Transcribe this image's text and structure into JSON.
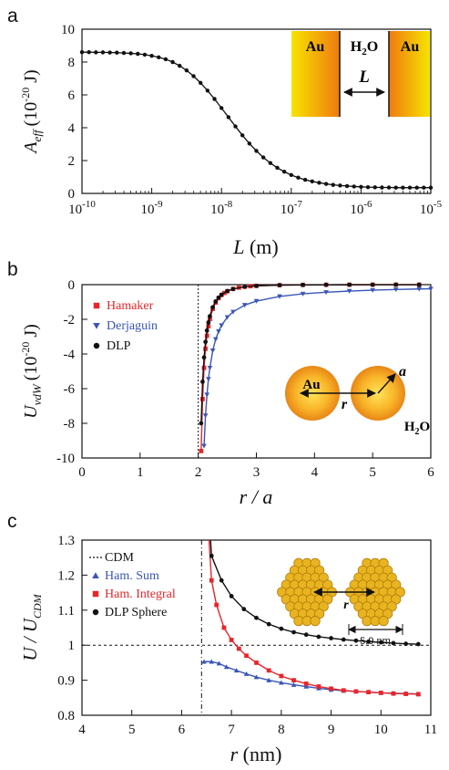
{
  "panels": {
    "a": {
      "label": "a",
      "ylabel_sym": "A",
      "ylabel_sub": "eff",
      "ylabel_unit": "(10",
      "ylabel_exp": "-20",
      "ylabel_end": " J)",
      "xlabel_sym": "L",
      "xlabel_unit": " (m)"
    },
    "b": {
      "label": "b",
      "ylabel_sym": "U",
      "ylabel_sub": "vdW",
      "ylabel_unit": "(10",
      "ylabel_exp": "-20",
      "ylabel_end": " J)",
      "xlabel": "r / a"
    },
    "c": {
      "label": "c",
      "ylabel_main": "U / U",
      "ylabel_sub": "CDM",
      "xlabel_sym": "r",
      "xlabel_unit": " (nm)"
    }
  },
  "insets": {
    "a": {
      "left": "Au",
      "middle_main": "H",
      "middle_sub": "2",
      "middle_end": "O",
      "right": "Au",
      "gap": "L"
    },
    "b": {
      "particle": "Au",
      "distance": "r",
      "radius": "a",
      "medium_main": "H",
      "medium_sub": "2",
      "medium_end": "O"
    },
    "c": {
      "distance": "r",
      "size": "5.9 nm"
    }
  },
  "chart_data": [
    {
      "type": "line",
      "panel": "a",
      "xscale": "log",
      "xlim": [
        1e-10,
        1e-05
      ],
      "ylim": [
        0,
        10
      ],
      "xticks": [
        1e-10,
        1e-09,
        1e-08,
        1e-07,
        1e-06,
        1e-05
      ],
      "xtick_mantissa": [
        "10",
        "10",
        "10",
        "10",
        "10",
        "10"
      ],
      "xtick_exponents": [
        "-10",
        "-9",
        "-8",
        "-7",
        "-6",
        "-5"
      ],
      "yticks": [
        0,
        2,
        4,
        6,
        8,
        10
      ],
      "ytick_labels": [
        "0",
        "2",
        "4",
        "6",
        "8",
        "10"
      ],
      "series": [
        {
          "color": "#111111",
          "marker": "circle",
          "logx": [
            -10,
            -9.9,
            -9.8,
            -9.7,
            -9.6,
            -9.5,
            -9.4,
            -9.3,
            -9.2,
            -9.1,
            -9,
            -8.9,
            -8.8,
            -8.7,
            -8.6,
            -8.5,
            -8.4,
            -8.3,
            -8.2,
            -8.1,
            -8,
            -7.9,
            -7.8,
            -7.7,
            -7.6,
            -7.5,
            -7.4,
            -7.3,
            -7.2,
            -7.1,
            -7,
            -6.9,
            -6.8,
            -6.7,
            -6.6,
            -6.5,
            -6.4,
            -6.3,
            -6.2,
            -6.1,
            -6,
            -5.9,
            -5.8,
            -5.7,
            -5.6,
            -5.5,
            -5.4,
            -5.3,
            -5.2,
            -5.1,
            -5
          ],
          "y": [
            8.6,
            8.6,
            8.59,
            8.59,
            8.58,
            8.57,
            8.55,
            8.53,
            8.5,
            8.45,
            8.38,
            8.29,
            8.17,
            8.0,
            7.77,
            7.49,
            7.14,
            6.73,
            6.26,
            5.75,
            5.2,
            4.64,
            4.08,
            3.54,
            3.04,
            2.59,
            2.19,
            1.85,
            1.56,
            1.32,
            1.12,
            0.96,
            0.83,
            0.73,
            0.65,
            0.58,
            0.52,
            0.48,
            0.45,
            0.42,
            0.4,
            0.38,
            0.37,
            0.36,
            0.36,
            0.35,
            0.35,
            0.35,
            0.35,
            0.35,
            0.35
          ]
        }
      ]
    },
    {
      "type": "line",
      "panel": "b",
      "xlim": [
        0,
        6
      ],
      "ylim": [
        -10,
        0
      ],
      "xticks": [
        0,
        1,
        2,
        3,
        4,
        5,
        6
      ],
      "xtick_labels": [
        "0",
        "1",
        "2",
        "3",
        "4",
        "5",
        "6"
      ],
      "yticks": [
        0,
        -2,
        -4,
        -6,
        -8,
        -10
      ],
      "ytick_labels": [
        "0",
        "-2",
        "-4",
        "-6",
        "-8",
        "-10"
      ],
      "vline": 2,
      "legend_position": "top-left",
      "series": [
        {
          "name": "Hamaker",
          "color": "#e8262a",
          "marker": "square",
          "x": [
            2.05,
            2.075,
            2.1,
            2.125,
            2.15,
            2.175,
            2.2,
            2.25,
            2.3,
            2.35,
            2.4,
            2.45,
            2.5,
            2.6,
            2.7,
            2.8,
            2.9,
            3.0,
            3.4,
            3.8,
            4.2,
            4.6,
            5.0,
            5.4,
            5.8
          ],
          "y": [
            -9.6,
            -6.6,
            -4.8,
            -3.7,
            -2.95,
            -2.4,
            -1.98,
            -1.4,
            -1.03,
            -0.78,
            -0.6,
            -0.48,
            -0.38,
            -0.25,
            -0.17,
            -0.12,
            -0.09,
            -0.07,
            -0.03,
            -0.015,
            -0.009,
            -0.006,
            -0.004,
            -0.003,
            -0.002
          ]
        },
        {
          "name": "Derjaguin",
          "color": "#3a56b8",
          "marker": "triangle-down",
          "x": [
            2.1,
            2.125,
            2.15,
            2.175,
            2.2,
            2.25,
            2.3,
            2.35,
            2.4,
            2.5,
            2.6,
            2.8,
            3.0,
            3.4,
            3.8,
            4.2,
            4.6,
            5.0,
            5.4,
            5.8,
            6.0
          ],
          "y": [
            -9.3,
            -7.55,
            -6.35,
            -5.45,
            -4.8,
            -3.8,
            -3.15,
            -2.7,
            -2.35,
            -1.88,
            -1.57,
            -1.18,
            -0.95,
            -0.68,
            -0.53,
            -0.44,
            -0.37,
            -0.32,
            -0.28,
            -0.25,
            -0.24
          ]
        },
        {
          "name": "DLP",
          "color": "#111111",
          "marker": "circle",
          "x": [
            2.05,
            2.075,
            2.1,
            2.125,
            2.15,
            2.175,
            2.2,
            2.25,
            2.3,
            2.35,
            2.4,
            2.5,
            2.6,
            2.8,
            3.0,
            3.4,
            3.8,
            4.2,
            4.6,
            5.0,
            5.4,
            5.8
          ],
          "y": [
            -8.0,
            -5.6,
            -4.2,
            -3.3,
            -2.65,
            -2.18,
            -1.82,
            -1.3,
            -0.97,
            -0.75,
            -0.58,
            -0.37,
            -0.25,
            -0.12,
            -0.07,
            -0.03,
            -0.015,
            -0.009,
            -0.006,
            -0.004,
            -0.003,
            -0.002
          ]
        }
      ]
    },
    {
      "type": "line",
      "panel": "c",
      "xlim": [
        4,
        11
      ],
      "ylim": [
        0.8,
        1.3
      ],
      "xticks": [
        4,
        5,
        6,
        7,
        8,
        9,
        10,
        11
      ],
      "xtick_labels": [
        "4",
        "5",
        "6",
        "7",
        "8",
        "9",
        "10",
        "11"
      ],
      "yticks": [
        0.8,
        0.9,
        1.0,
        1.1,
        1.2,
        1.3
      ],
      "ytick_labels": [
        "0.8",
        "0.9",
        "1",
        "1.1",
        "1.2",
        "1.3"
      ],
      "vline": 6.4,
      "hline": 1.0,
      "legend_position": "top-left",
      "series": [
        {
          "name": "CDM",
          "color": "#111111",
          "marker": "none",
          "dashed": true,
          "x": [],
          "y": []
        },
        {
          "name": "Ham. Sum",
          "color": "#3a56b8",
          "marker": "triangle-up",
          "x": [
            6.45,
            6.6,
            6.75,
            6.9,
            7.1,
            7.3,
            7.5,
            7.75,
            8.0,
            8.25,
            8.5,
            8.75,
            9.0,
            9.25,
            9.5,
            9.75,
            10.0,
            10.25,
            10.5,
            10.75
          ],
          "y": [
            0.953,
            0.953,
            0.948,
            0.938,
            0.928,
            0.918,
            0.909,
            0.9,
            0.893,
            0.887,
            0.882,
            0.877,
            0.873,
            0.87,
            0.868,
            0.866,
            0.864,
            0.863,
            0.862,
            0.861
          ]
        },
        {
          "name": "Ham. Integral",
          "color": "#e8262a",
          "marker": "square",
          "x": [
            6.6,
            6.7,
            6.85,
            7.0,
            7.15,
            7.3,
            7.5,
            7.75,
            8.0,
            8.25,
            8.5,
            8.75,
            9.0,
            9.25,
            9.5,
            9.75,
            10.0,
            10.25,
            10.5,
            10.75
          ],
          "y": [
            1.185,
            1.115,
            1.05,
            1.015,
            0.99,
            0.97,
            0.95,
            0.928,
            0.912,
            0.9,
            0.89,
            0.882,
            0.876,
            0.871,
            0.868,
            0.866,
            0.864,
            0.862,
            0.861,
            0.86
          ]
        },
        {
          "name": "DLP Sphere",
          "color": "#111111",
          "marker": "circle",
          "x": [
            6.6,
            6.8,
            7.0,
            7.25,
            7.5,
            7.75,
            8.0,
            8.25,
            8.5,
            8.75,
            9.0,
            9.25,
            9.5,
            9.75,
            10.0,
            10.25,
            10.5,
            10.75
          ],
          "y": [
            1.255,
            1.185,
            1.14,
            1.103,
            1.078,
            1.06,
            1.047,
            1.037,
            1.03,
            1.024,
            1.02,
            1.016,
            1.013,
            1.01,
            1.008,
            1.006,
            1.004,
            1.003
          ]
        }
      ]
    }
  ]
}
